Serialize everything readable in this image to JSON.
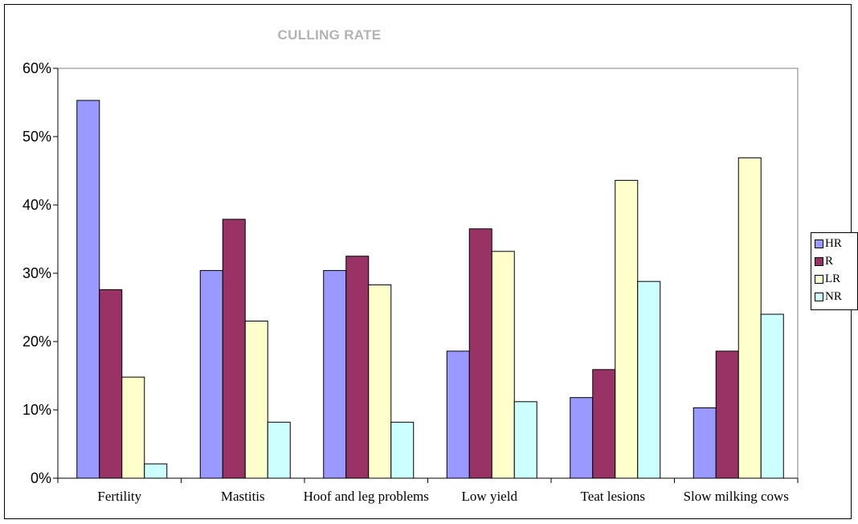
{
  "chart_data": {
    "type": "bar",
    "title": "CULLING RATE",
    "categories": [
      "Fertility",
      "Mastitis",
      "Hoof and leg problems",
      "Low yield",
      "Teat lesions",
      "Slow milking cows"
    ],
    "series": [
      {
        "name": "HR",
        "color": "#9999ff",
        "values": [
          55.3,
          30.4,
          30.4,
          18.6,
          11.8,
          10.3
        ]
      },
      {
        "name": "R",
        "color": "#993366",
        "values": [
          27.6,
          37.9,
          32.5,
          36.5,
          15.9,
          18.6
        ]
      },
      {
        "name": "LR",
        "color": "#ffffcc",
        "values": [
          14.8,
          23.0,
          28.3,
          33.2,
          43.6,
          46.9
        ]
      },
      {
        "name": "NR",
        "color": "#ccffff",
        "values": [
          2.1,
          8.2,
          8.2,
          11.2,
          28.8,
          24.0
        ]
      }
    ],
    "yticks": [
      "0%",
      "10%",
      "20%",
      "30%",
      "40%",
      "50%",
      "60%"
    ],
    "ylim": [
      0,
      60
    ],
    "grid": false,
    "legend": "right",
    "plot_border": "#808080"
  }
}
